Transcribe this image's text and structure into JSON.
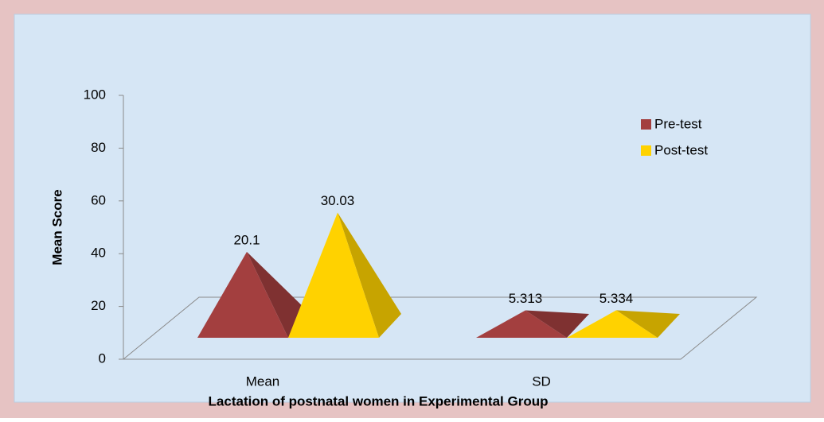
{
  "chart_data": {
    "type": "pyramid3d",
    "categories": [
      "Mean",
      "SD"
    ],
    "series": [
      {
        "name": "Pre-test",
        "color": "#a33f3f",
        "values": [
          20.1,
          5.313
        ]
      },
      {
        "name": "Post-test",
        "color": "#ffd200",
        "values": [
          30.03,
          5.334
        ]
      }
    ],
    "ylim": [
      0,
      100
    ],
    "yticks": [
      0,
      20,
      40,
      60,
      80,
      100
    ],
    "ylabel": "Mean  Score",
    "xlabel": "Lactation of postnatal women in Experimental Group",
    "legend": "upper right"
  }
}
